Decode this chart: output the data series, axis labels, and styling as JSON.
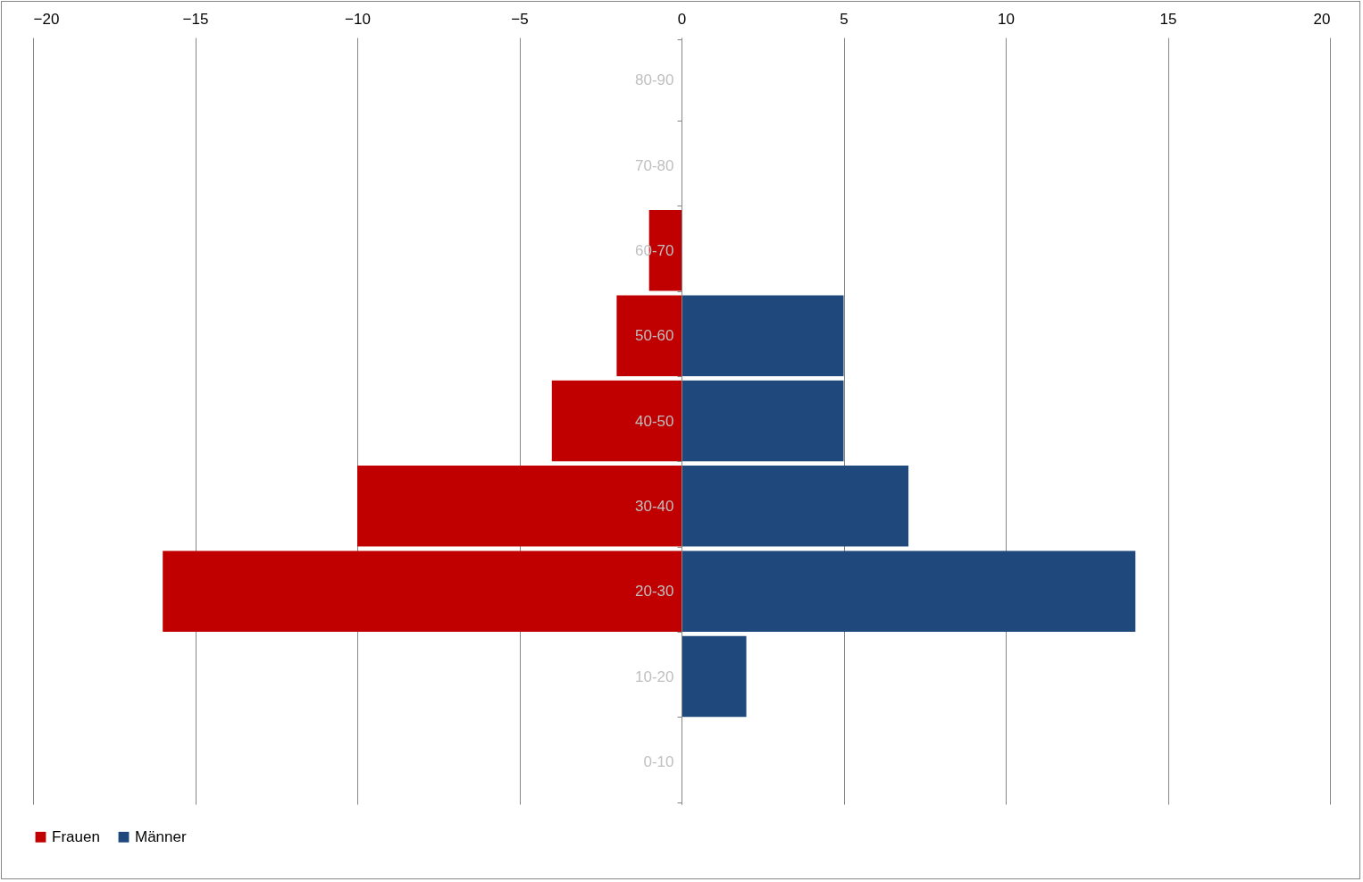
{
  "chart_data": {
    "type": "bar",
    "orientation": "horizontal",
    "categories": [
      "80-90",
      "70-80",
      "60-70",
      "50-60",
      "40-50",
      "30-40",
      "20-30",
      "10-20",
      "0-10"
    ],
    "series": [
      {
        "name": "Frauen",
        "color": "#c00000",
        "values": [
          null,
          null,
          -1,
          -2,
          -4,
          -10,
          -16,
          null,
          null
        ]
      },
      {
        "name": "Männer",
        "color": "#1f497d",
        "values": [
          null,
          null,
          null,
          5,
          5,
          7,
          14,
          2,
          null
        ]
      }
    ],
    "xlim": [
      -20,
      20
    ],
    "xticks": [
      -20,
      -15,
      -10,
      -5,
      0,
      5,
      10,
      15,
      20
    ],
    "grid": "x",
    "legend": "bottom"
  }
}
